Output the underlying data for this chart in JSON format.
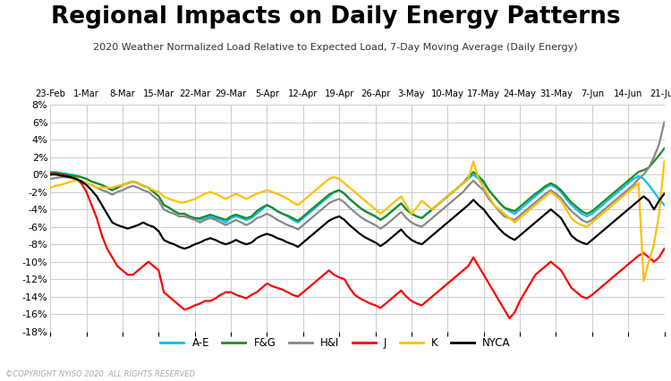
{
  "title": "Regional Impacts on Daily Energy Patterns",
  "subtitle": "2020 Weather Normalized Load Relative to Expected Load, 7-Day Moving Average (Daily Energy)",
  "copyright": "©COPYRIGHT NYISO 2020. ALL RIGHTS RESERVED",
  "ylim": [
    -18,
    8
  ],
  "yticks": [
    -18,
    -16,
    -14,
    -12,
    -10,
    -8,
    -6,
    -4,
    -2,
    0,
    2,
    4,
    6,
    8
  ],
  "series_colors": {
    "A-E": "#00BFFF",
    "F&G": "#228B22",
    "H&I": "#888888",
    "J": "#FF0000",
    "K": "#FFC000",
    "NYCA": "#000000"
  },
  "x_labels": [
    "23-Feb",
    "1-Mar",
    "8-Mar",
    "15-Mar",
    "22-Mar",
    "29-Mar",
    "5-Apr",
    "12-Apr",
    "19-Apr",
    "26-Apr",
    "3-May",
    "10-May",
    "17-May",
    "24-May",
    "31-May",
    "7-Jun",
    "14-Jun",
    "21-Jun"
  ],
  "n_points": 120,
  "background_color": "#FFFFFF",
  "footer_bg": "#1a5276",
  "footer_text_color": "#AAAAAA",
  "series": {
    "A-E": [
      0.3,
      0.3,
      0.2,
      0.1,
      0.0,
      -0.1,
      -0.3,
      -0.5,
      -0.8,
      -1.0,
      -1.2,
      -1.5,
      -1.8,
      -1.5,
      -1.2,
      -1.0,
      -0.8,
      -1.0,
      -1.3,
      -1.5,
      -2.0,
      -2.5,
      -3.5,
      -3.8,
      -4.2,
      -4.5,
      -4.5,
      -4.8,
      -5.0,
      -5.2,
      -5.0,
      -4.8,
      -5.0,
      -5.2,
      -5.5,
      -5.0,
      -4.8,
      -5.0,
      -5.2,
      -5.0,
      -4.5,
      -4.0,
      -3.5,
      -3.8,
      -4.2,
      -4.5,
      -4.8,
      -5.2,
      -5.5,
      -5.0,
      -4.5,
      -4.0,
      -3.5,
      -3.0,
      -2.5,
      -2.0,
      -1.8,
      -2.2,
      -2.8,
      -3.3,
      -3.8,
      -4.2,
      -4.5,
      -4.8,
      -5.2,
      -4.8,
      -4.3,
      -3.8,
      -3.3,
      -4.0,
      -4.5,
      -4.8,
      -5.0,
      -4.5,
      -4.0,
      -3.5,
      -3.0,
      -2.5,
      -2.0,
      -1.5,
      -1.0,
      -0.5,
      0.0,
      -0.5,
      -1.0,
      -1.8,
      -2.5,
      -3.2,
      -3.8,
      -4.2,
      -4.5,
      -4.0,
      -3.5,
      -3.0,
      -2.5,
      -2.0,
      -1.5,
      -1.2,
      -1.5,
      -2.0,
      -2.8,
      -3.5,
      -4.0,
      -4.5,
      -4.8,
      -4.5,
      -4.0,
      -3.5,
      -3.0,
      -2.5,
      -2.0,
      -1.5,
      -1.0,
      -0.5,
      -0.2,
      -0.5,
      -1.2,
      -2.0,
      -2.8,
      -3.5
    ],
    "F&G": [
      0.2,
      0.2,
      0.1,
      0.0,
      -0.1,
      -0.2,
      -0.3,
      -0.5,
      -0.8,
      -1.0,
      -1.2,
      -1.5,
      -1.8,
      -1.5,
      -1.2,
      -1.0,
      -0.8,
      -1.0,
      -1.3,
      -1.5,
      -2.0,
      -2.5,
      -3.5,
      -3.8,
      -4.2,
      -4.5,
      -4.5,
      -4.8,
      -5.0,
      -5.0,
      -4.8,
      -4.6,
      -4.8,
      -5.0,
      -5.2,
      -4.8,
      -4.6,
      -4.8,
      -5.0,
      -4.8,
      -4.2,
      -3.8,
      -3.5,
      -3.8,
      -4.2,
      -4.5,
      -4.7,
      -5.0,
      -5.3,
      -4.8,
      -4.3,
      -3.8,
      -3.3,
      -2.8,
      -2.3,
      -2.0,
      -1.8,
      -2.2,
      -2.8,
      -3.3,
      -3.8,
      -4.2,
      -4.5,
      -4.8,
      -5.2,
      -4.8,
      -4.3,
      -3.8,
      -3.3,
      -4.0,
      -4.5,
      -4.8,
      -5.0,
      -4.5,
      -4.0,
      -3.5,
      -3.0,
      -2.5,
      -2.0,
      -1.5,
      -1.0,
      -0.3,
      0.3,
      -0.2,
      -0.8,
      -1.8,
      -2.5,
      -3.2,
      -3.8,
      -4.0,
      -4.2,
      -3.7,
      -3.2,
      -2.7,
      -2.2,
      -1.8,
      -1.3,
      -1.0,
      -1.3,
      -1.8,
      -2.5,
      -3.2,
      -3.7,
      -4.2,
      -4.5,
      -4.2,
      -3.7,
      -3.2,
      -2.7,
      -2.2,
      -1.7,
      -1.2,
      -0.7,
      -0.2,
      0.3,
      0.5,
      0.8,
      1.5,
      2.2,
      3.0
    ],
    "H&I": [
      -0.5,
      -0.4,
      -0.3,
      -0.3,
      -0.4,
      -0.5,
      -0.7,
      -1.0,
      -1.2,
      -1.5,
      -1.8,
      -2.0,
      -2.3,
      -2.0,
      -1.8,
      -1.5,
      -1.3,
      -1.5,
      -1.8,
      -2.0,
      -2.5,
      -3.0,
      -4.0,
      -4.3,
      -4.5,
      -4.8,
      -4.8,
      -5.0,
      -5.2,
      -5.5,
      -5.2,
      -5.0,
      -5.2,
      -5.5,
      -5.8,
      -5.5,
      -5.2,
      -5.5,
      -5.8,
      -5.5,
      -5.0,
      -4.8,
      -4.5,
      -4.8,
      -5.2,
      -5.5,
      -5.8,
      -6.0,
      -6.3,
      -5.8,
      -5.3,
      -4.8,
      -4.3,
      -3.8,
      -3.3,
      -3.0,
      -2.8,
      -3.2,
      -3.8,
      -4.3,
      -4.8,
      -5.2,
      -5.5,
      -5.8,
      -6.2,
      -5.8,
      -5.3,
      -4.8,
      -4.3,
      -5.0,
      -5.5,
      -5.8,
      -6.0,
      -5.5,
      -5.0,
      -4.5,
      -4.0,
      -3.5,
      -3.0,
      -2.5,
      -2.0,
      -1.3,
      -0.7,
      -1.3,
      -1.8,
      -2.8,
      -3.5,
      -4.2,
      -4.8,
      -5.0,
      -5.2,
      -4.7,
      -4.2,
      -3.7,
      -3.2,
      -2.7,
      -2.2,
      -1.8,
      -2.2,
      -2.7,
      -3.5,
      -4.2,
      -4.7,
      -5.2,
      -5.5,
      -5.2,
      -4.7,
      -4.2,
      -3.7,
      -3.2,
      -2.7,
      -2.2,
      -1.7,
      -1.2,
      -0.5,
      0.0,
      0.8,
      2.0,
      3.5,
      6.0
    ],
    "J": [
      0.1,
      0.1,
      0.0,
      -0.1,
      -0.3,
      -0.5,
      -1.0,
      -2.0,
      -3.5,
      -5.0,
      -7.0,
      -8.5,
      -9.5,
      -10.5,
      -11.0,
      -11.5,
      -11.5,
      -11.0,
      -10.5,
      -10.0,
      -10.5,
      -11.0,
      -13.5,
      -14.0,
      -14.5,
      -15.0,
      -15.5,
      -15.3,
      -15.0,
      -14.8,
      -14.5,
      -14.5,
      -14.2,
      -13.8,
      -13.5,
      -13.5,
      -13.8,
      -14.0,
      -14.2,
      -13.8,
      -13.5,
      -13.0,
      -12.5,
      -12.8,
      -13.0,
      -13.2,
      -13.5,
      -13.8,
      -14.0,
      -13.5,
      -13.0,
      -12.5,
      -12.0,
      -11.5,
      -11.0,
      -11.5,
      -11.8,
      -12.0,
      -13.0,
      -13.8,
      -14.2,
      -14.5,
      -14.8,
      -15.0,
      -15.3,
      -14.8,
      -14.3,
      -13.8,
      -13.3,
      -14.0,
      -14.5,
      -14.8,
      -15.0,
      -14.5,
      -14.0,
      -13.5,
      -13.0,
      -12.5,
      -12.0,
      -11.5,
      -11.0,
      -10.5,
      -9.5,
      -10.5,
      -11.5,
      -12.5,
      -13.5,
      -14.5,
      -15.5,
      -16.5,
      -15.8,
      -14.5,
      -13.5,
      -12.5,
      -11.5,
      -11.0,
      -10.5,
      -10.0,
      -10.5,
      -11.0,
      -12.0,
      -13.0,
      -13.5,
      -14.0,
      -14.2,
      -13.8,
      -13.3,
      -12.8,
      -12.3,
      -11.8,
      -11.3,
      -10.8,
      -10.3,
      -9.8,
      -9.3,
      -9.0,
      -9.5,
      -10.0,
      -9.5,
      -8.5
    ],
    "K": [
      -1.5,
      -1.3,
      -1.2,
      -1.0,
      -0.8,
      -0.7,
      -0.8,
      -1.0,
      -1.2,
      -1.5,
      -1.5,
      -1.5,
      -1.5,
      -1.3,
      -1.2,
      -1.0,
      -0.8,
      -1.0,
      -1.3,
      -1.5,
      -1.8,
      -2.0,
      -2.5,
      -2.8,
      -3.0,
      -3.2,
      -3.2,
      -3.0,
      -2.8,
      -2.5,
      -2.2,
      -2.0,
      -2.2,
      -2.5,
      -2.8,
      -2.5,
      -2.2,
      -2.5,
      -2.8,
      -2.5,
      -2.2,
      -2.0,
      -1.8,
      -2.0,
      -2.2,
      -2.5,
      -2.8,
      -3.2,
      -3.5,
      -3.0,
      -2.5,
      -2.0,
      -1.5,
      -1.0,
      -0.5,
      -0.3,
      -0.5,
      -1.0,
      -1.5,
      -2.0,
      -2.5,
      -3.0,
      -3.5,
      -4.0,
      -4.5,
      -4.0,
      -3.5,
      -3.0,
      -2.5,
      -3.5,
      -4.5,
      -3.8,
      -3.0,
      -3.5,
      -4.0,
      -3.5,
      -3.0,
      -2.5,
      -2.0,
      -1.5,
      -1.0,
      -0.5,
      1.5,
      -0.5,
      -1.5,
      -2.5,
      -3.5,
      -4.0,
      -4.5,
      -5.0,
      -5.5,
      -5.0,
      -4.5,
      -4.0,
      -3.5,
      -3.0,
      -2.5,
      -2.0,
      -2.5,
      -3.0,
      -4.0,
      -5.0,
      -5.5,
      -5.8,
      -6.0,
      -5.5,
      -5.0,
      -4.5,
      -4.0,
      -3.5,
      -3.0,
      -2.5,
      -2.0,
      -1.5,
      -1.0,
      -12.2,
      -10.0,
      -8.0,
      -4.5,
      1.5
    ],
    "NYCA": [
      0.0,
      0.0,
      -0.1,
      -0.2,
      -0.3,
      -0.5,
      -0.8,
      -1.2,
      -1.8,
      -2.5,
      -3.5,
      -4.5,
      -5.5,
      -5.8,
      -6.0,
      -6.2,
      -6.0,
      -5.8,
      -5.5,
      -5.8,
      -6.0,
      -6.5,
      -7.5,
      -7.8,
      -8.0,
      -8.3,
      -8.5,
      -8.3,
      -8.0,
      -7.8,
      -7.5,
      -7.3,
      -7.5,
      -7.8,
      -8.0,
      -7.8,
      -7.5,
      -7.8,
      -8.0,
      -7.8,
      -7.3,
      -7.0,
      -6.8,
      -7.0,
      -7.3,
      -7.5,
      -7.8,
      -8.0,
      -8.3,
      -7.8,
      -7.3,
      -6.8,
      -6.3,
      -5.8,
      -5.3,
      -5.0,
      -4.8,
      -5.2,
      -5.8,
      -6.3,
      -6.8,
      -7.2,
      -7.5,
      -7.8,
      -8.2,
      -7.8,
      -7.3,
      -6.8,
      -6.3,
      -7.0,
      -7.5,
      -7.8,
      -8.0,
      -7.5,
      -7.0,
      -6.5,
      -6.0,
      -5.5,
      -5.0,
      -4.5,
      -4.0,
      -3.5,
      -2.9,
      -3.5,
      -4.0,
      -4.8,
      -5.5,
      -6.2,
      -6.8,
      -7.2,
      -7.5,
      -7.0,
      -6.5,
      -6.0,
      -5.5,
      -5.0,
      -4.5,
      -4.0,
      -4.5,
      -5.0,
      -6.0,
      -7.0,
      -7.5,
      -7.8,
      -8.0,
      -7.5,
      -7.0,
      -6.5,
      -6.0,
      -5.5,
      -5.0,
      -4.5,
      -4.0,
      -3.5,
      -3.0,
      -2.5,
      -3.0,
      -4.0,
      -3.0,
      -2.2
    ]
  }
}
